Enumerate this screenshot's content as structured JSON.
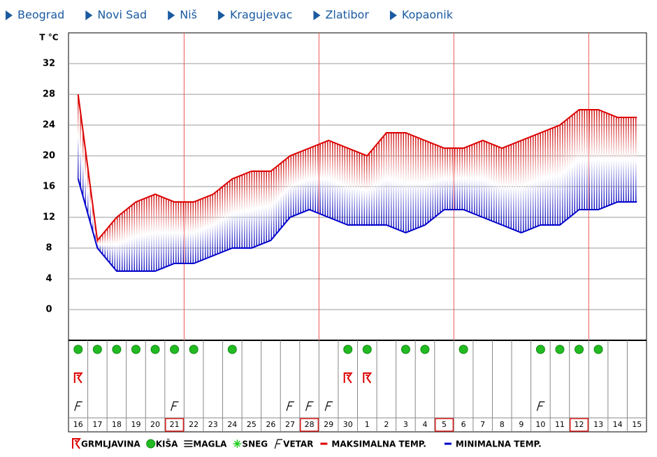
{
  "nav": [
    "Beograd",
    "Novi Sad",
    "Niš",
    "Kragujevac",
    "Zlatibor",
    "Kopaonik"
  ],
  "chart_data": {
    "type": "line",
    "y_label": "T °C",
    "categories": [
      "16",
      "17",
      "18",
      "19",
      "20",
      "21",
      "22",
      "23",
      "24",
      "25",
      "26",
      "27",
      "28",
      "29",
      "30",
      "1",
      "2",
      "3",
      "4",
      "5",
      "6",
      "7",
      "8",
      "9",
      "10",
      "11",
      "12",
      "13",
      "14",
      "15"
    ],
    "series": [
      {
        "name": "MAKSIMALNA TEMP.",
        "color": "#dd0000",
        "values": [
          28,
          9,
          12,
          14,
          15,
          14,
          14,
          15,
          17,
          18,
          18,
          20,
          21,
          22,
          21,
          20,
          23,
          23,
          22,
          21,
          21,
          22,
          21,
          22,
          23,
          24,
          26,
          26,
          25,
          25
        ]
      },
      {
        "name": "MINIMALNA TEMP.",
        "color": "#0000cc",
        "values": [
          17,
          8,
          5,
          5,
          5,
          6,
          6,
          7,
          8,
          8,
          9,
          12,
          13,
          12,
          11,
          11,
          11,
          10,
          11,
          13,
          13,
          12,
          11,
          10,
          11,
          11,
          13,
          13,
          14,
          14
        ]
      }
    ],
    "ylim": [
      -4,
      36
    ],
    "yticks": [
      0,
      4,
      8,
      12,
      16,
      20,
      24,
      28,
      32
    ],
    "grid": true,
    "highlight": [
      5,
      12,
      19,
      26
    ],
    "icons": [
      {
        "name": "GRMLJAVINA",
        "days": [
          0,
          14,
          15
        ]
      },
      {
        "name": "KIŠA",
        "days": [
          0,
          1,
          2,
          3,
          4,
          5,
          6,
          8,
          14,
          15,
          17,
          18,
          20,
          24,
          25,
          26,
          27
        ]
      },
      {
        "name": "MAGLA",
        "days": []
      },
      {
        "name": "SNEG",
        "days": []
      },
      {
        "name": "VETAR",
        "days": [
          0,
          5,
          11,
          12,
          13,
          24
        ]
      }
    ]
  }
}
